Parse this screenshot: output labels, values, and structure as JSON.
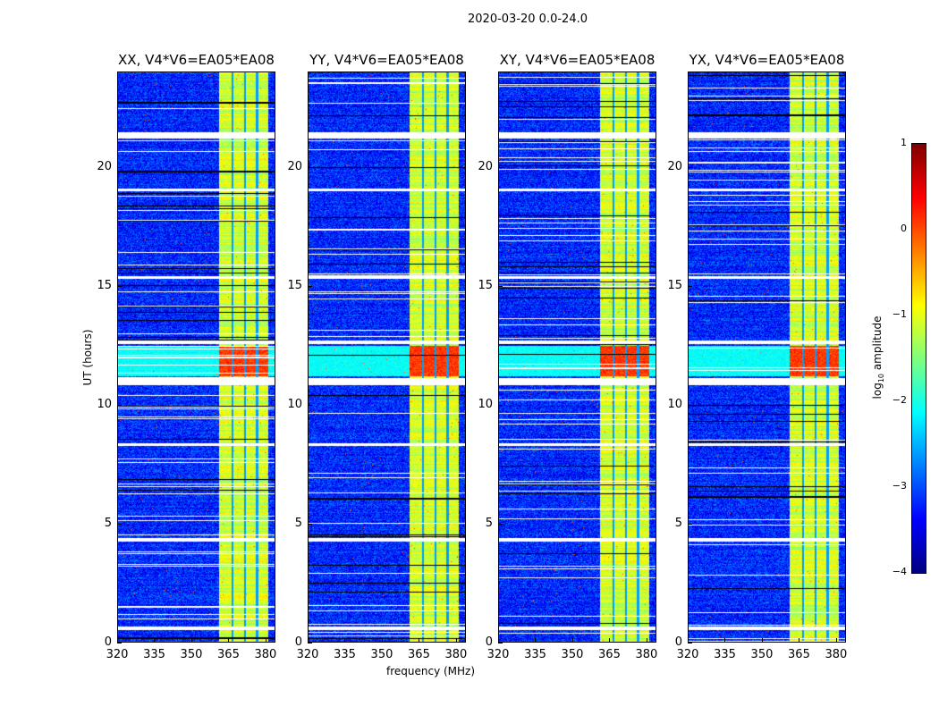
{
  "suptitle": "2020-03-20 0.0-24.0",
  "chart_data": {
    "type": "heatmap",
    "title": "2020-03-20 0.0-24.0",
    "xlabel": "frequency (MHz)",
    "ylabel": "UT (hours)",
    "xlim": [
      320,
      384
    ],
    "ylim": [
      0,
      24
    ],
    "xticks": [
      "320",
      "335",
      "350",
      "365",
      "380"
    ],
    "xtick_values": [
      320,
      335,
      350,
      365,
      380
    ],
    "yticks": [
      "0",
      "5",
      "10",
      "15",
      "20"
    ],
    "ytick_values": [
      0,
      5,
      10,
      15,
      20
    ],
    "colormap": "jet",
    "colorbar": {
      "label_prefix": "log",
      "label_sub": "10",
      "label_suffix": " amplitude",
      "range": [
        -4,
        1
      ],
      "ticks": [
        "1",
        "0",
        "−1",
        "−2",
        "−3",
        "−4"
      ],
      "tick_values": [
        1,
        0,
        -1,
        -2,
        -3,
        -4
      ]
    },
    "panels": [
      {
        "title": "XX, V4*V6=EA05*EA08"
      },
      {
        "title": "YY, V4*V6=EA05*EA08"
      },
      {
        "title": "XY, V4*V6=EA05*EA08"
      },
      {
        "title": "YX, V4*V6=EA05*EA08"
      }
    ],
    "background_log_amplitude": -3.2,
    "rfi_band_mhz": [
      361,
      381
    ],
    "rfi_log_amplitude": -1.1,
    "rfi_gaps_mhz": [
      366.5,
      371.5,
      376.5
    ],
    "flagged_hours": [
      [
        21.2,
        21.45
      ],
      [
        12.55,
        12.7
      ],
      [
        10.85,
        11.15
      ],
      [
        4.25,
        4.4
      ],
      [
        0.55,
        0.7
      ],
      [
        8.3,
        8.4
      ],
      [
        15.3,
        15.4
      ],
      [
        19.0,
        19.1
      ]
    ],
    "bright_band_hours": [
      11.2,
      12.5
    ]
  }
}
